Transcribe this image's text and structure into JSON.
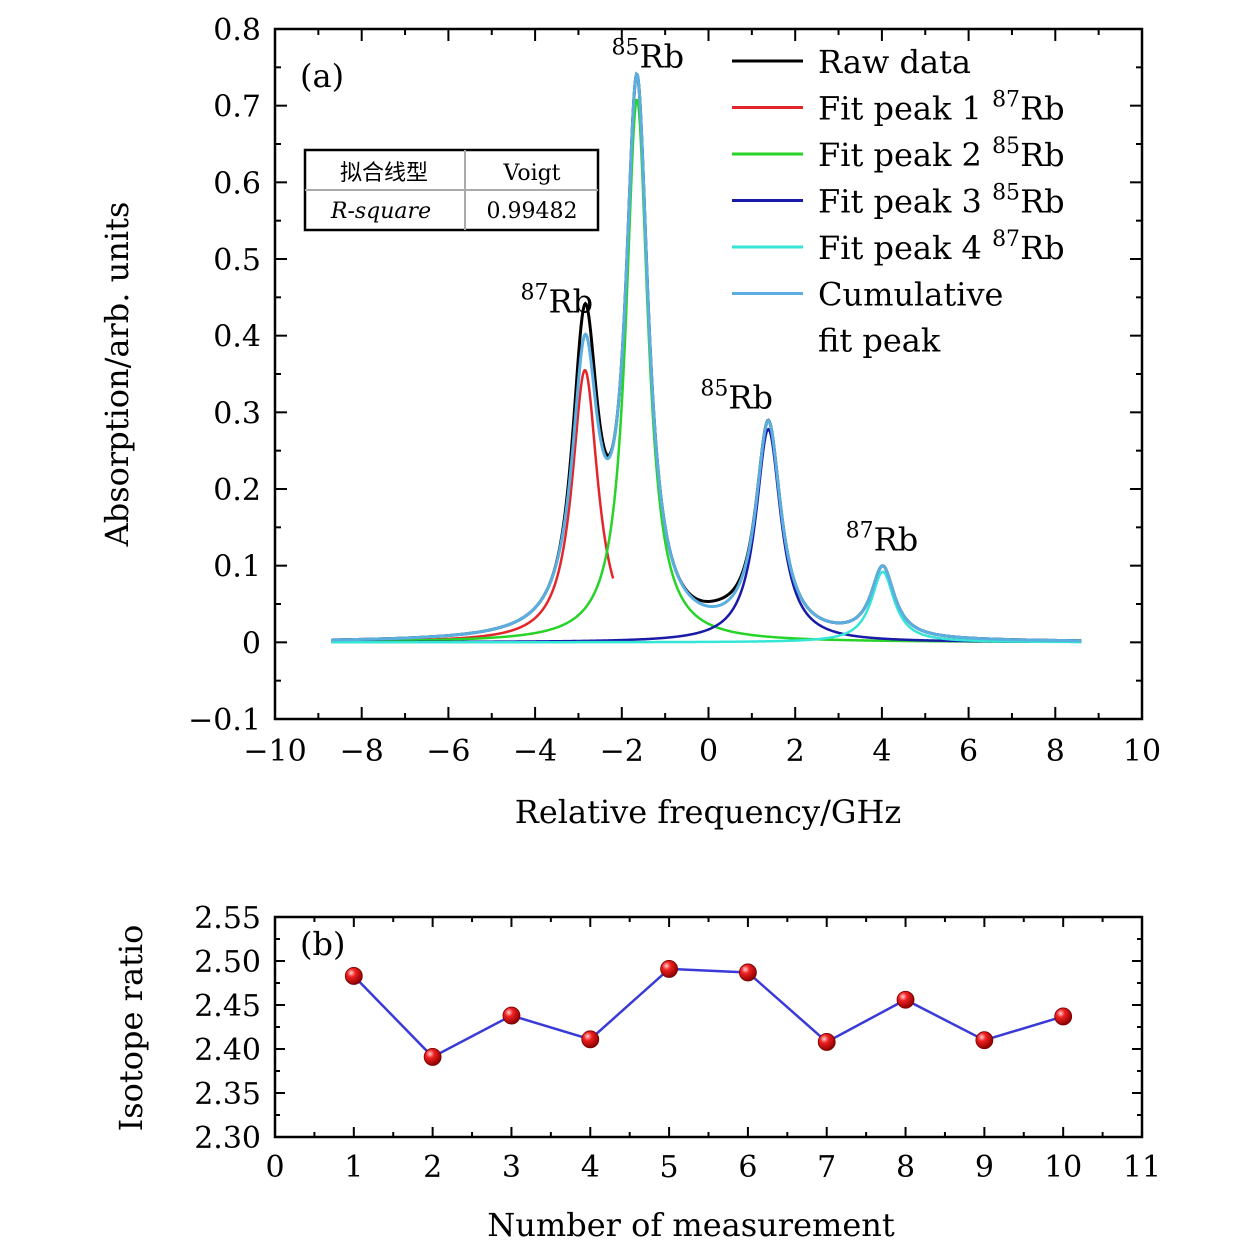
{
  "chart_data": [
    {
      "type": "line",
      "panel_label": "(a)",
      "xlabel": "Relative frequency/GHz",
      "ylabel": "Absorption/arb. units",
      "xlim": [
        -10,
        10
      ],
      "ylim": [
        -0.1,
        0.8
      ],
      "x_ticks": [
        -10,
        -8,
        -6,
        -4,
        -2,
        0,
        2,
        4,
        6,
        8,
        10
      ],
      "x_tick_labels": [
        "−10",
        "−8",
        "−6",
        "−4",
        "−2",
        "0",
        "2",
        "4",
        "6",
        "8",
        "10"
      ],
      "y_ticks": [
        -0.1,
        0,
        0.1,
        0.2,
        0.3,
        0.4,
        0.5,
        0.6,
        0.7,
        0.8
      ],
      "y_tick_labels": [
        "−0.1",
        "0",
        "0.1",
        "0.2",
        "0.3",
        "0.4",
        "0.5",
        "0.6",
        "0.7",
        "0.8"
      ],
      "x_range_plotted": [
        -8.7,
        8.6
      ],
      "grid": false,
      "legend_position": "top-right",
      "legend": [
        {
          "lines": [
            "Raw data"
          ],
          "color": "#000000"
        },
        {
          "lines": [
            "Fit peak 1 ",
            "87",
            "Rb"
          ],
          "color": "#e3262b"
        },
        {
          "lines": [
            "Fit peak 2 ",
            "85",
            "Rb"
          ],
          "color": "#27d327"
        },
        {
          "lines": [
            "Fit peak 3 ",
            "85",
            "Rb"
          ],
          "color": "#1a1aa8"
        },
        {
          "lines": [
            "Fit peak 4 ",
            "87",
            "Rb"
          ],
          "color": "#35e6d6"
        },
        {
          "lines": [
            "Cumulative",
            "fit peak"
          ],
          "color": "#5aaee0"
        }
      ],
      "series": [
        {
          "name": "Fit peak 1 87Rb",
          "center": -2.85,
          "amplitude": 0.355,
          "fwhm": 0.72,
          "x_end": -2.2
        },
        {
          "name": "Fit peak 2 85Rb",
          "center": -1.65,
          "amplitude": 0.708,
          "fwhm": 0.62
        },
        {
          "name": "Fit peak 3 85Rb",
          "center": 1.38,
          "amplitude": 0.278,
          "fwhm": 0.7
        },
        {
          "name": "Fit peak 4 87Rb",
          "center": 4.02,
          "amplitude": 0.092,
          "fwhm": 0.65
        }
      ],
      "annotations": [
        {
          "sup": "87",
          "text": "Rb",
          "x": -3.5,
          "y": 0.43
        },
        {
          "sup": "85",
          "text": "Rb",
          "x": -1.4,
          "y": 0.75
        },
        {
          "sup": "85",
          "text": "Rb",
          "x": 0.65,
          "y": 0.305
        },
        {
          "sup": "87",
          "text": "Rb",
          "x": 4.0,
          "y": 0.12
        }
      ],
      "fit_table": {
        "rows": [
          [
            "拟合线型",
            "Voigt"
          ],
          [
            "R-square",
            "0.99482"
          ]
        ]
      }
    },
    {
      "type": "line",
      "panel_label": "(b)",
      "xlabel": "Number of measurement",
      "ylabel": "Isotope ratio",
      "xlim": [
        0,
        11
      ],
      "ylim": [
        2.3,
        2.55
      ],
      "x_ticks": [
        0,
        1,
        2,
        3,
        4,
        5,
        6,
        7,
        8,
        9,
        10,
        11
      ],
      "y_ticks": [
        2.3,
        2.35,
        2.4,
        2.45,
        2.5,
        2.55
      ],
      "y_tick_labels": [
        "2.30",
        "2.35",
        "2.40",
        "2.45",
        "2.50",
        "2.55"
      ],
      "grid": false,
      "line_color": "#3a3ad8",
      "marker_color": "#e31b1b",
      "x": [
        1,
        2,
        3,
        4,
        5,
        6,
        7,
        8,
        9,
        10
      ],
      "values": [
        2.483,
        2.391,
        2.438,
        2.411,
        2.491,
        2.487,
        2.408,
        2.456,
        2.41,
        2.437
      ]
    }
  ]
}
